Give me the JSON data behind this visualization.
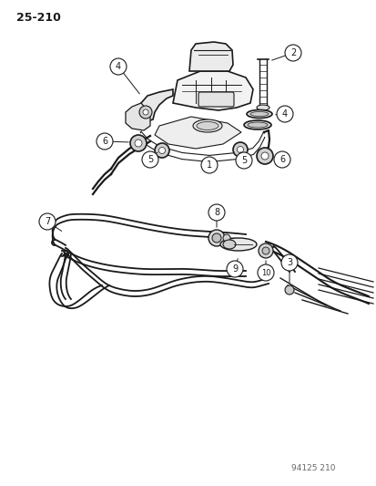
{
  "page_number": "25-210",
  "watermark": "94125 210",
  "background_color": "#ffffff",
  "line_color": "#1a1a1a",
  "fig_width": 4.14,
  "fig_height": 5.33,
  "dpi": 100
}
